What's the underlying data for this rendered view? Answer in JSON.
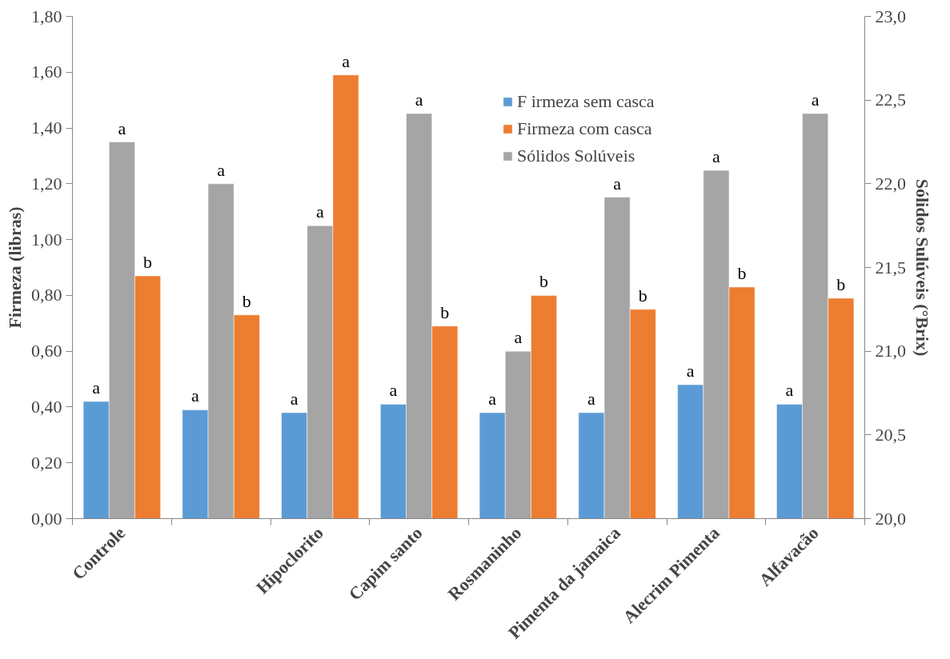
{
  "chart_data": {
    "type": "bar",
    "xlabel": null,
    "ylabel": "Firmeza (libras)",
    "y2label": "Sólidos Sulúveis (°Brix)",
    "categories": [
      "Controle",
      null,
      "Hipoclorito",
      "Capim santo",
      "Rosmaninho",
      "Pimenta da jamaica",
      "Alecrim Pimenta",
      "Alfavacão"
    ],
    "series": [
      {
        "name": "F irmeza sem casca",
        "color": "#5b9bd5",
        "values": [
          0.42,
          0.39,
          0.38,
          0.41,
          0.38,
          0.38,
          0.48,
          0.41
        ],
        "value_labels": [
          "a",
          "a",
          "a",
          "a",
          "a",
          "a",
          "a",
          "a"
        ]
      },
      {
        "name": "Sólidos Solúveis",
        "color": "#a5a5a5",
        "axis": "y2",
        "values": [
          22.25,
          22.0,
          21.75,
          22.42,
          21.0,
          21.92,
          22.08,
          22.42
        ],
        "value_labels": [
          "a",
          "a",
          "a",
          "a",
          "a",
          "a",
          "a",
          "a"
        ]
      },
      {
        "name": "Firmeza com casca",
        "color": "#ed7d31",
        "values": [
          0.87,
          0.73,
          1.59,
          0.69,
          0.8,
          0.75,
          0.83,
          0.79
        ],
        "value_labels": [
          "b",
          "b",
          "a",
          "b",
          "b",
          "b",
          "b",
          "b"
        ]
      }
    ],
    "ylim": [
      0,
      1.8
    ],
    "yticks": [
      {
        "value": 0,
        "label": "0,00"
      },
      {
        "value": 0.2,
        "label": "0,20"
      },
      {
        "value": 0.4,
        "label": "0,40"
      },
      {
        "value": 0.6,
        "label": "0,60"
      },
      {
        "value": 0.8,
        "label": "0,80"
      },
      {
        "value": 1.0,
        "label": "1,00"
      },
      {
        "value": 1.2,
        "label": "1,20"
      },
      {
        "value": 1.4,
        "label": "1,40"
      },
      {
        "value": 1.6,
        "label": "1,60"
      },
      {
        "value": 1.8,
        "label": "1,80"
      }
    ],
    "y2lim": [
      20,
      23
    ],
    "y2ticks": [
      {
        "value": 20,
        "label": "20,0"
      },
      {
        "value": 20.5,
        "label": "20,5"
      },
      {
        "value": 21,
        "label": "21,0"
      },
      {
        "value": 21.5,
        "label": "21,5"
      },
      {
        "value": 22,
        "label": "22,0"
      },
      {
        "value": 22.5,
        "label": "22,5"
      },
      {
        "value": 23,
        "label": "23,0"
      }
    ],
    "grid": false,
    "legend": "top right"
  }
}
